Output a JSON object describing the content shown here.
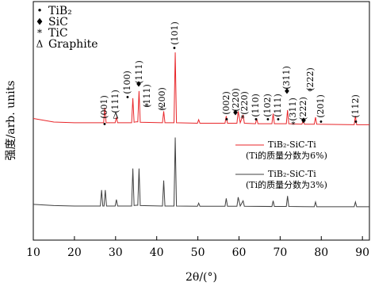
{
  "chart_data": {
    "type": "line",
    "x_label": "2θ/(°)",
    "y_label": "强度/arb. units",
    "xlim": [
      10,
      91.7
    ],
    "xticks": [
      10,
      20,
      30,
      40,
      50,
      60,
      70,
      80,
      90
    ],
    "ylim": [
      0,
      100
    ],
    "series": [
      {
        "name": "TiB₂-SiC-Ti",
        "note": "(Ti的质量分数为6%)",
        "color": "#e8262a",
        "x": [
          10,
          15,
          20,
          25,
          27.1,
          27.4,
          27.7,
          29.9,
          30.2,
          30.5,
          33.9,
          34.2,
          34.5,
          35.0,
          35.4,
          35.7,
          36.0,
          41.4,
          41.7,
          42.0,
          44.2,
          44.5,
          44.8,
          49.9,
          50.2,
          50.5,
          56.6,
          56.9,
          57.2,
          59.5,
          59.8,
          60.3,
          61.0,
          61.3,
          64.0,
          64.3,
          64.6,
          68.0,
          68.3,
          68.6,
          71.5,
          71.8,
          72.1,
          75.3,
          75.6,
          75.9,
          78.3,
          78.6,
          78.9,
          88.0,
          88.3,
          88.6,
          91.7
        ],
        "values": [
          51,
          49.5,
          49.2,
          49.2,
          49.2,
          55.5,
          49.2,
          49.2,
          51.5,
          49.2,
          49.2,
          59.5,
          49.4,
          49.6,
          49.6,
          62.5,
          49.4,
          49.2,
          54,
          49.2,
          49.2,
          78.7,
          49.2,
          49.0,
          50.5,
          49.0,
          49.0,
          52,
          49.0,
          49.0,
          54,
          49.2,
          52.5,
          49.0,
          48.8,
          51,
          48.8,
          48.8,
          53,
          48.8,
          48.8,
          54.5,
          48.8,
          48.6,
          50.5,
          48.6,
          48.6,
          51.5,
          48.6,
          48.4,
          52,
          48.4,
          48.4
        ]
      },
      {
        "name": "TiB₂-SiC-Ti",
        "note": "(Ti的质量分数为3%)",
        "color": "#404040",
        "x": [
          10,
          15,
          20,
          25,
          26.3,
          26.6,
          26.9,
          27.2,
          27.5,
          27.8,
          29.9,
          30.2,
          30.5,
          33.9,
          34.2,
          34.5,
          35.0,
          35.4,
          35.7,
          36.0,
          41.4,
          41.7,
          42.0,
          44.2,
          44.5,
          44.8,
          49.9,
          50.2,
          50.5,
          56.6,
          56.9,
          57.2,
          59.5,
          59.8,
          60.3,
          61.0,
          61.3,
          68.0,
          68.3,
          68.6,
          71.5,
          71.8,
          72.1,
          78.3,
          78.6,
          78.9,
          88.0,
          88.3,
          88.6,
          91.7
        ],
        "values": [
          15,
          14.5,
          14.3,
          14.3,
          14.3,
          21,
          14.3,
          14.3,
          21,
          14.3,
          14.3,
          17,
          14.3,
          14.3,
          30,
          14.5,
          14.6,
          14.6,
          30,
          14.5,
          14.3,
          25,
          14.3,
          14.3,
          43,
          14.3,
          14.2,
          15.5,
          14.2,
          14.2,
          17.5,
          14.2,
          14.2,
          18,
          14.3,
          16.5,
          14.2,
          14.1,
          16.5,
          14.1,
          14.1,
          18.5,
          14.1,
          14.0,
          16,
          14.0,
          14.0,
          16,
          14.0,
          14.0
        ]
      }
    ],
    "phase_key": [
      {
        "symbol": "•",
        "label": "TiB₂"
      },
      {
        "symbol": "♦",
        "label": "SiC"
      },
      {
        "symbol": "*",
        "label": "TiC"
      },
      {
        "symbol": "Δ",
        "label": "Graphite"
      }
    ],
    "annotations": [
      "•",
      "(001)",
      "Δ",
      "(111)",
      "•",
      "(100)",
      "♦",
      "(111)",
      "*",
      "(111)",
      "*",
      "(200)",
      "•",
      "(101)",
      "•",
      "(002)",
      "♦",
      "(220)",
      "*",
      "(220)",
      "•",
      "(110)",
      "•",
      "(102)",
      "•",
      "(111)",
      "♦",
      "(311)",
      "*",
      "(311)",
      "♦",
      "(222)",
      "*",
      "(222)",
      "•",
      "(201)",
      "•",
      "(112)"
    ]
  }
}
